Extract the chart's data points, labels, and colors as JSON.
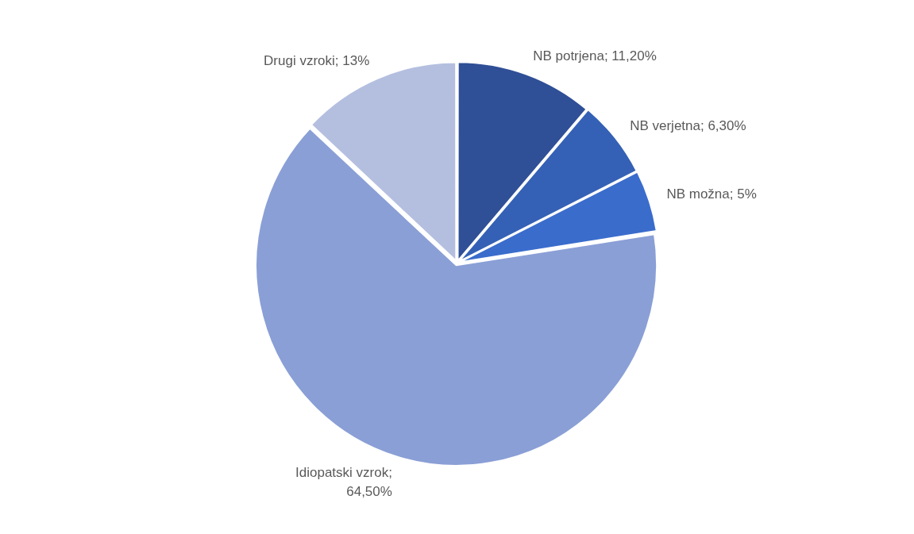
{
  "chart_data": {
    "type": "pie",
    "categories": [
      "NB potrjena; 11,20%",
      "NB verjetna; 6,30%",
      "NB možna; 5%",
      "Idiopatski vzrok; 64,50%",
      "Drugi vzroki; 13%"
    ],
    "values": [
      11.2,
      6.3,
      5,
      64.5,
      13
    ],
    "colors": [
      "#2f4f96",
      "#3461b5",
      "#3a6ccc",
      "#8a9fd6",
      "#b4bfe0"
    ],
    "legend": false
  }
}
